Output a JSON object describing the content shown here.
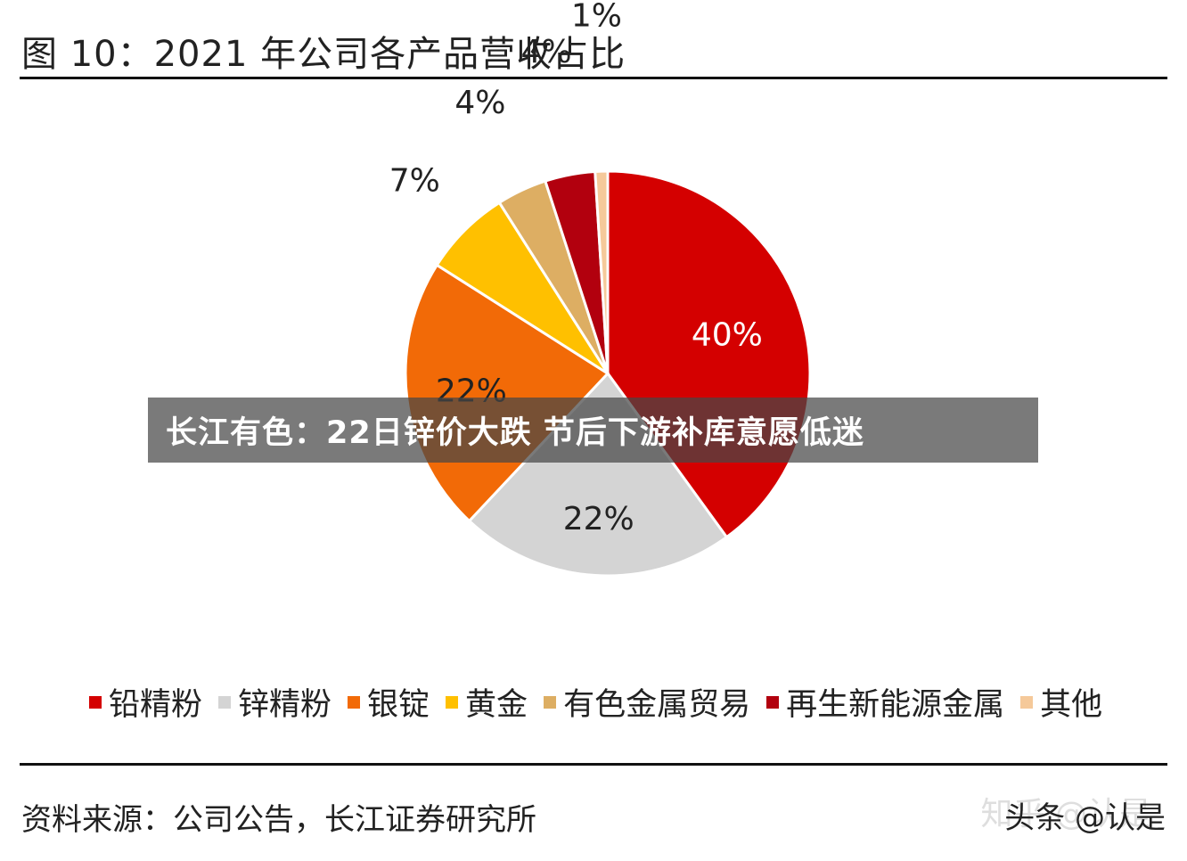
{
  "title": "图 10：2021 年公司各产品营收占比",
  "chart_data": {
    "type": "pie",
    "title": "图 10：2021 年公司各产品营收占比",
    "slices": [
      {
        "label": "铅精粉",
        "value": 40,
        "display": "40%",
        "color": "#D40000"
      },
      {
        "label": "锌精粉",
        "value": 22,
        "display": "22%",
        "color": "#D4D4D4"
      },
      {
        "label": "银锭",
        "value": 22,
        "display": "22%",
        "color": "#F26A07"
      },
      {
        "label": "黄金",
        "value": 7,
        "display": "7%",
        "color": "#FFC000"
      },
      {
        "label": "有色金属贸易",
        "value": 4,
        "display": "4%",
        "color": "#DDAE63"
      },
      {
        "label": "再生新能源金属",
        "value": 4,
        "display": "4%",
        "color": "#B2000E"
      },
      {
        "label": "其他",
        "value": 1,
        "display": "1%",
        "color": "#F5C99A"
      }
    ],
    "legend_position": "bottom"
  },
  "source": "资料来源：公司公告，长江证券研究所",
  "banner": "长江有色：22日锌价大跌 节后下游补库意愿低迷",
  "watermark": {
    "faint": "知乎 @认是",
    "main": "头条 @认是"
  }
}
